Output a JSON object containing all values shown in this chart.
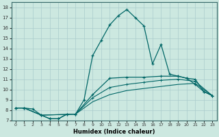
{
  "xlabel": "Humidex (Indice chaleur)",
  "xlim": [
    -0.5,
    23.5
  ],
  "ylim": [
    7,
    18.5
  ],
  "xticks": [
    0,
    1,
    2,
    3,
    4,
    5,
    6,
    7,
    8,
    9,
    10,
    11,
    12,
    13,
    14,
    15,
    16,
    17,
    18,
    19,
    20,
    21,
    22,
    23
  ],
  "yticks": [
    7,
    8,
    9,
    10,
    11,
    12,
    13,
    14,
    15,
    16,
    17,
    18
  ],
  "background_color": "#cce8e0",
  "grid_color": "#aacccc",
  "line_color": "#006666",
  "line1_x": [
    0,
    1,
    2,
    3,
    4,
    5,
    6,
    7,
    8,
    9,
    10,
    11,
    12,
    13,
    14,
    15,
    16,
    17,
    18,
    19,
    20,
    21,
    22,
    23
  ],
  "line1_y": [
    8.2,
    8.2,
    8.1,
    7.5,
    7.15,
    7.15,
    7.6,
    7.6,
    9.0,
    13.3,
    14.8,
    16.3,
    17.2,
    17.8,
    17.0,
    16.2,
    12.5,
    14.4,
    11.5,
    11.3,
    11.1,
    10.5,
    9.8,
    9.4
  ],
  "line2_x": [
    0,
    1,
    3,
    4,
    5,
    6,
    7,
    9,
    11,
    13,
    15,
    17,
    19,
    20,
    21,
    22,
    23
  ],
  "line2_y": [
    8.2,
    8.2,
    7.5,
    7.15,
    7.15,
    7.6,
    7.6,
    9.5,
    11.1,
    11.2,
    11.2,
    11.3,
    11.3,
    11.1,
    11.0,
    9.8,
    9.4
  ],
  "line3_x": [
    0,
    1,
    3,
    7,
    9,
    11,
    13,
    15,
    17,
    19,
    21,
    23
  ],
  "line3_y": [
    8.2,
    8.2,
    7.5,
    7.6,
    9.2,
    10.2,
    10.5,
    10.7,
    10.9,
    11.0,
    10.8,
    9.4
  ],
  "line4_x": [
    0,
    1,
    3,
    7,
    9,
    11,
    13,
    15,
    17,
    19,
    21,
    23
  ],
  "line4_y": [
    8.2,
    8.2,
    7.5,
    7.6,
    8.8,
    9.5,
    9.9,
    10.1,
    10.3,
    10.5,
    10.6,
    9.4
  ]
}
